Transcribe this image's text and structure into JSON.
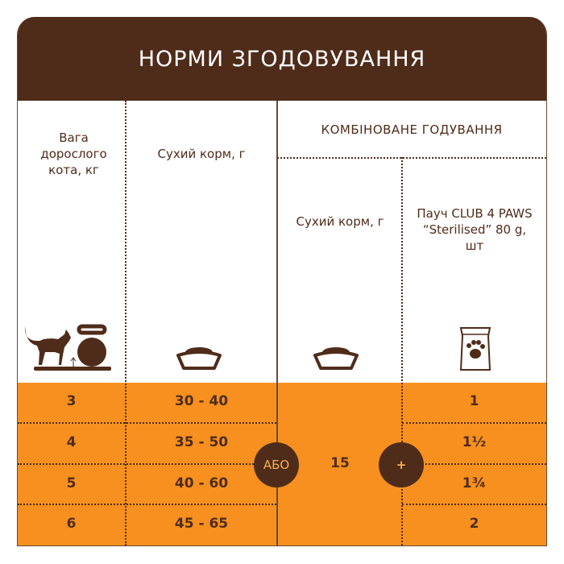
{
  "title": "НОРМИ ЗГОДОВУВАННЯ",
  "columns": {
    "weight": "Вага дорослого кота, кг",
    "dry": "Сухий корм, г",
    "combined": "КОМБІНОВАНЕ ГОДУВАННЯ",
    "combined_dry": "Сухий корм, г",
    "pouch": "Пауч CLUB 4 PAWS “Sterilised” 80 g, шт"
  },
  "rows": [
    {
      "weight": "3",
      "dry": "30 - 40",
      "pouch": "1"
    },
    {
      "weight": "4",
      "dry": "35 - 50",
      "pouch": "1½"
    },
    {
      "weight": "5",
      "dry": "40 - 60",
      "pouch": "1¾"
    },
    {
      "weight": "6",
      "dry": "45 - 65",
      "pouch": "2"
    }
  ],
  "combined_dry_value": "15",
  "or_label": "АБО",
  "plus_label": "+",
  "icons": [
    "cat-on-scale-icon",
    "kettlebell-icon",
    "food-bowl-icon",
    "pouch-paw-icon"
  ],
  "colors": {
    "brown": "#4f2c1a",
    "orange": "#f7901e"
  }
}
